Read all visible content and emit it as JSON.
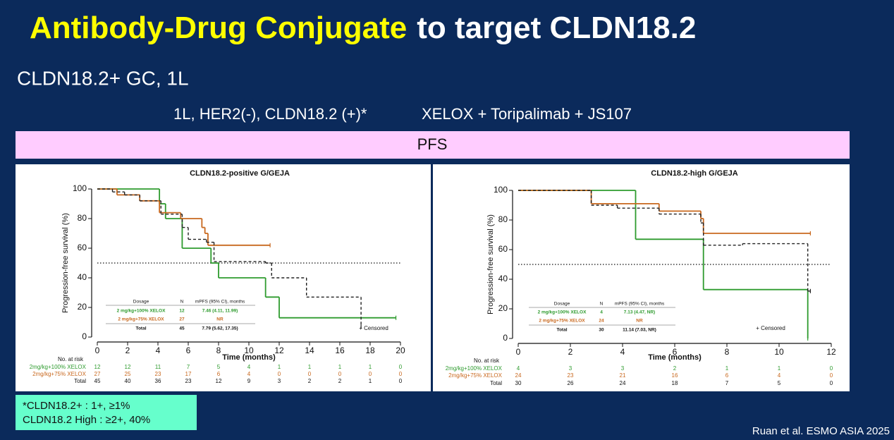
{
  "slide": {
    "title_highlight": "Antibody-Drug Conjugate",
    "title_rest": "to target CLDN18.2",
    "subtitle": "CLDN18.2+ GC, 1L",
    "population": "1L, HER2(-), CLDN18.2 (+)*",
    "regimen": "XELOX + Toripalimab + JS107",
    "section": "PFS",
    "footnote": [
      "*CLDN18.2+ : 1+, ≥1%",
      "CLDN18.2 High : ≥2+, 40%"
    ],
    "citation": "Ruan et al. ESMO ASIA 2025"
  },
  "chart_data": [
    {
      "type": "line",
      "step": true,
      "title": "CLDN18.2-positive  G/GEJA",
      "x_label": "Time (months)",
      "y_label": "Progression-free survival (%)",
      "xlim": [
        0,
        20
      ],
      "xticks": [
        0,
        2,
        4,
        6,
        8,
        10,
        12,
        14,
        16,
        18,
        20
      ],
      "ylim": [
        0,
        100
      ],
      "yticks": [
        0,
        20,
        40,
        60,
        80,
        100
      ],
      "reference_line": 50,
      "annotation": "+ Censored",
      "series": [
        {
          "name": "2 mg/kg+100% XELOX",
          "color": "#2e9b2e",
          "dashed": false,
          "x": [
            0,
            4.1,
            4.5,
            5.6,
            7.5,
            8.0,
            11.1,
            12.0,
            19.7
          ],
          "values": [
            100,
            90,
            80,
            60,
            50,
            40,
            27,
            13,
            13
          ]
        },
        {
          "name": "2 mg/kg+75% XELOX",
          "color": "#c8681e",
          "dashed": false,
          "x": [
            0,
            1.3,
            2.8,
            4.1,
            5.5,
            6.9,
            7.1,
            7.3,
            11.4
          ],
          "values": [
            100,
            96,
            92,
            84,
            80,
            74,
            70,
            62,
            62
          ]
        },
        {
          "name": "Total",
          "color": "#222222",
          "dashed": true,
          "x": [
            0,
            1.0,
            1.8,
            2.8,
            4.2,
            5.6,
            6.0,
            7.2,
            7.7,
            11.1,
            11.5,
            13.8,
            17.4
          ],
          "values": [
            100,
            98,
            96,
            92,
            83,
            74,
            66,
            64,
            51,
            50,
            40,
            27,
            7
          ]
        }
      ],
      "dosage_table": {
        "header": [
          "Dosage",
          "N",
          "mPFS (95% CI), months"
        ],
        "rows": [
          {
            "n": 12,
            "mpfs": "7.46 (4.11, 11.99)"
          },
          {
            "n": 27,
            "mpfs": "NR"
          },
          {
            "n": 45,
            "mpfs": "7.79 (5.62, 17.35)"
          }
        ]
      },
      "risk_table": {
        "title": "No. at risk",
        "rows": [
          {
            "label": "2mg/kg+100% XELOX",
            "counts": [
              12,
              12,
              11,
              7,
              5,
              4,
              1,
              1,
              1,
              1,
              0
            ]
          },
          {
            "label": "2mg/kg+75% XELOX",
            "counts": [
              27,
              25,
              23,
              17,
              6,
              4,
              0,
              0,
              0,
              0,
              0
            ]
          },
          {
            "label": "Total",
            "counts": [
              45,
              40,
              36,
              23,
              12,
              9,
              3,
              2,
              2,
              1,
              0
            ]
          }
        ]
      }
    },
    {
      "type": "line",
      "step": true,
      "title": "CLDN18.2-high  G/GEJA",
      "x_label": "Time (months)",
      "y_label": "Progression-free survival (%)",
      "xlim": [
        0,
        12
      ],
      "xticks": [
        0,
        2,
        4,
        6,
        8,
        10,
        12
      ],
      "ylim": [
        0,
        100
      ],
      "yticks": [
        0,
        20,
        40,
        60,
        80,
        100
      ],
      "reference_line": 50,
      "annotation": "+ Censored",
      "series": [
        {
          "name": "2 mg/kg+100% XELOX",
          "color": "#2e9b2e",
          "dashed": false,
          "x": [
            0,
            4.5,
            7.1,
            11.1
          ],
          "values": [
            100,
            67,
            33,
            0
          ]
        },
        {
          "name": "2 mg/kg+75% XELOX",
          "color": "#c8681e",
          "dashed": false,
          "x": [
            0,
            2.8,
            5.4,
            7.0,
            7.1,
            11.2
          ],
          "values": [
            100,
            91,
            86,
            81,
            71,
            71
          ]
        },
        {
          "name": "Total",
          "color": "#222222",
          "dashed": true,
          "x": [
            0,
            2.8,
            3.8,
            5.4,
            7.0,
            7.1,
            8.6,
            11.1,
            11.2
          ],
          "values": [
            100,
            90,
            88,
            84,
            78,
            63,
            64,
            32,
            32
          ]
        }
      ],
      "dosage_table": {
        "header": [
          "Dosage",
          "N",
          "mPFS (95% CI), months"
        ],
        "rows": [
          {
            "n": 4,
            "mpfs": "7.13 (4.47, NR)"
          },
          {
            "n": 24,
            "mpfs": "NR"
          },
          {
            "n": 30,
            "mpfs": "11.14 (7.03, NR)"
          }
        ]
      },
      "risk_table": {
        "title": "No. at risk",
        "rows": [
          {
            "label": "2mg/kg+100% XELOX",
            "counts": [
              4,
              3,
              3,
              2,
              1,
              1,
              0
            ]
          },
          {
            "label": "2mg/kg+75% XELOX",
            "counts": [
              24,
              23,
              21,
              16,
              6,
              4,
              0
            ]
          },
          {
            "label": "Total",
            "counts": [
              30,
              26,
              24,
              18,
              7,
              5,
              0
            ]
          }
        ]
      }
    }
  ]
}
